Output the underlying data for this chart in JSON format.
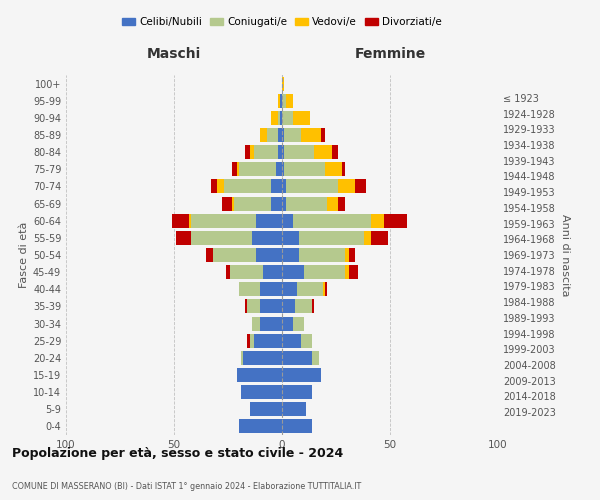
{
  "age_groups": [
    "0-4",
    "5-9",
    "10-14",
    "15-19",
    "20-24",
    "25-29",
    "30-34",
    "35-39",
    "40-44",
    "45-49",
    "50-54",
    "55-59",
    "60-64",
    "65-69",
    "70-74",
    "75-79",
    "80-84",
    "85-89",
    "90-94",
    "95-99",
    "100+"
  ],
  "birth_years": [
    "2019-2023",
    "2014-2018",
    "2009-2013",
    "2004-2008",
    "1999-2003",
    "1994-1998",
    "1989-1993",
    "1984-1988",
    "1979-1983",
    "1974-1978",
    "1969-1973",
    "1964-1968",
    "1959-1963",
    "1954-1958",
    "1949-1953",
    "1944-1948",
    "1939-1943",
    "1934-1938",
    "1929-1933",
    "1924-1928",
    "≤ 1923"
  ],
  "colors": {
    "celibi": "#4472c4",
    "coniugati": "#b5c98e",
    "vedovi": "#ffc000",
    "divorziati": "#c00000"
  },
  "maschi": {
    "celibi": [
      20,
      15,
      19,
      21,
      18,
      13,
      10,
      10,
      10,
      9,
      12,
      14,
      12,
      5,
      5,
      3,
      2,
      2,
      1,
      1,
      0
    ],
    "coniugati": [
      0,
      0,
      0,
      0,
      1,
      2,
      4,
      6,
      10,
      15,
      20,
      28,
      30,
      17,
      22,
      17,
      11,
      5,
      1,
      0,
      0
    ],
    "vedovi": [
      0,
      0,
      0,
      0,
      0,
      0,
      0,
      0,
      0,
      0,
      0,
      0,
      1,
      1,
      3,
      1,
      2,
      3,
      3,
      1,
      0
    ],
    "divorziati": [
      0,
      0,
      0,
      0,
      0,
      1,
      0,
      1,
      0,
      2,
      3,
      7,
      8,
      5,
      3,
      2,
      2,
      0,
      0,
      0,
      0
    ]
  },
  "femmine": {
    "celibi": [
      14,
      11,
      14,
      18,
      14,
      9,
      5,
      6,
      7,
      10,
      8,
      8,
      5,
      2,
      2,
      1,
      1,
      1,
      0,
      0,
      0
    ],
    "coniugati": [
      0,
      0,
      0,
      0,
      3,
      5,
      5,
      8,
      12,
      19,
      21,
      30,
      36,
      19,
      24,
      19,
      14,
      8,
      5,
      2,
      0
    ],
    "vedovi": [
      0,
      0,
      0,
      0,
      0,
      0,
      0,
      0,
      1,
      2,
      2,
      3,
      6,
      5,
      8,
      8,
      8,
      9,
      8,
      3,
      1
    ],
    "divorziati": [
      0,
      0,
      0,
      0,
      0,
      0,
      0,
      1,
      1,
      4,
      3,
      8,
      11,
      3,
      5,
      1,
      3,
      2,
      0,
      0,
      0
    ]
  },
  "xlim": 100,
  "title": "Popolazione per età, sesso e stato civile - 2024",
  "subtitle": "COMUNE DI MASSERANO (BI) - Dati ISTAT 1° gennaio 2024 - Elaborazione TUTTITALIA.IT",
  "ylabel_left": "Fasce di età",
  "ylabel_right": "Anni di nascita",
  "xlabel_left": "Maschi",
  "xlabel_right": "Femmine",
  "legend_labels": [
    "Celibi/Nubili",
    "Coniugati/e",
    "Vedovi/e",
    "Divorziati/e"
  ],
  "background_color": "#f5f5f5"
}
